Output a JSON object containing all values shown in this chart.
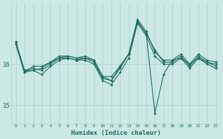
{
  "xlabel": "Humidex (Indice chaleur)",
  "bg_color": "#cce8e4",
  "grid_color": "#a8d4cf",
  "line_color": "#1a6b5e",
  "xlim": [
    -0.5,
    23.5
  ],
  "ylim": [
    14.55,
    17.5
  ],
  "yticks": [
    15,
    16
  ],
  "xticks": [
    0,
    1,
    2,
    3,
    4,
    5,
    6,
    7,
    8,
    9,
    10,
    11,
    12,
    13,
    14,
    15,
    16,
    17,
    18,
    19,
    20,
    21,
    22,
    23
  ],
  "series": [
    [
      16.55,
      15.85,
      15.85,
      15.75,
      15.95,
      16.1,
      16.15,
      16.1,
      16.15,
      16.05,
      15.65,
      15.6,
      15.9,
      16.25,
      17.05,
      16.75,
      16.35,
      16.05,
      16.05,
      16.2,
      15.95,
      16.2,
      16.05,
      16.0
    ],
    [
      16.55,
      15.85,
      15.9,
      15.85,
      16.0,
      16.15,
      16.2,
      16.15,
      16.2,
      16.1,
      15.7,
      15.7,
      15.95,
      16.25,
      17.1,
      16.8,
      16.3,
      16.1,
      16.1,
      16.25,
      16.0,
      16.25,
      16.1,
      16.05
    ],
    [
      16.5,
      15.8,
      15.95,
      15.95,
      16.05,
      16.2,
      16.2,
      16.15,
      16.15,
      16.1,
      15.7,
      15.6,
      15.95,
      16.25,
      17.05,
      16.75,
      14.8,
      15.75,
      16.1,
      16.15,
      16.0,
      16.15,
      16.05,
      15.95
    ],
    [
      16.5,
      15.8,
      15.85,
      15.9,
      16.05,
      16.15,
      16.15,
      16.1,
      16.1,
      16.0,
      15.6,
      15.5,
      15.8,
      16.15,
      17.0,
      16.7,
      16.2,
      16.0,
      16.0,
      16.15,
      15.9,
      16.15,
      16.0,
      15.9
    ]
  ]
}
